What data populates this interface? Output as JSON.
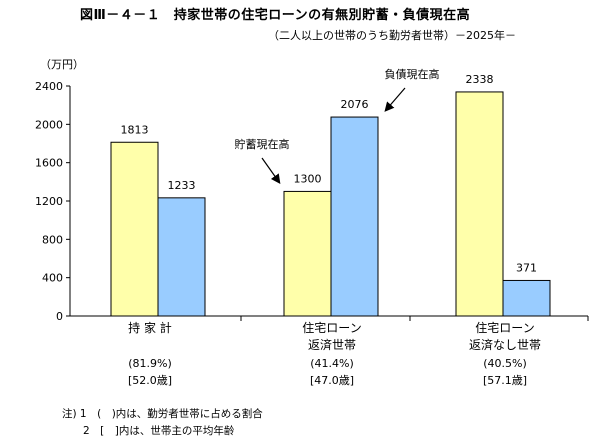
{
  "header": {
    "title": "図Ⅲ－４－１　持家世帯の住宅ローンの有無別貯蓄・負債現在高",
    "subtitle": "（二人以上の世帯のうち勤労者世帯）－2025年－",
    "unit": "（万円）"
  },
  "groups": [
    {
      "label_line1": "持 家 計",
      "label_line2": "",
      "share": "(81.9%)",
      "age": "[52.0歳]"
    },
    {
      "label_line1": "住宅ローン",
      "label_line2": "返済世帯",
      "share": "(41.4%)",
      "age": "[47.0歳]"
    },
    {
      "label_line1": "住宅ローン",
      "label_line2": "返済なし世帯",
      "share": "(40.5%)",
      "age": "[57.1歳]"
    }
  ],
  "notes": {
    "line1": "注) 1　(　)内は、勤労者世帯に占める割合",
    "line2": "　　2　[　]内は、世帯主の平均年齢"
  },
  "colors": {
    "savings": "#ffffaa",
    "debt": "#99ccff",
    "outline": "#000000"
  },
  "chart_data": {
    "type": "bar",
    "categories": [
      "持 家 計",
      "住宅ローン返済世帯",
      "住宅ローン返済なし世帯"
    ],
    "series": [
      {
        "name": "貯蓄現在高",
        "values": [
          1813,
          1300,
          2338
        ]
      },
      {
        "name": "負債現在高",
        "values": [
          1233,
          2076,
          371
        ]
      }
    ],
    "yticks": [
      0,
      400,
      800,
      1200,
      1600,
      2000,
      2400
    ],
    "ylim": [
      0,
      2400
    ],
    "annotations": [
      {
        "text": "貯蓄現在高",
        "points_to": "住宅ローン返済世帯 / 貯蓄現在高"
      },
      {
        "text": "負債現在高",
        "points_to": "住宅ローン返済世帯 / 負債現在高"
      }
    ],
    "grid": false,
    "legend": "none"
  }
}
